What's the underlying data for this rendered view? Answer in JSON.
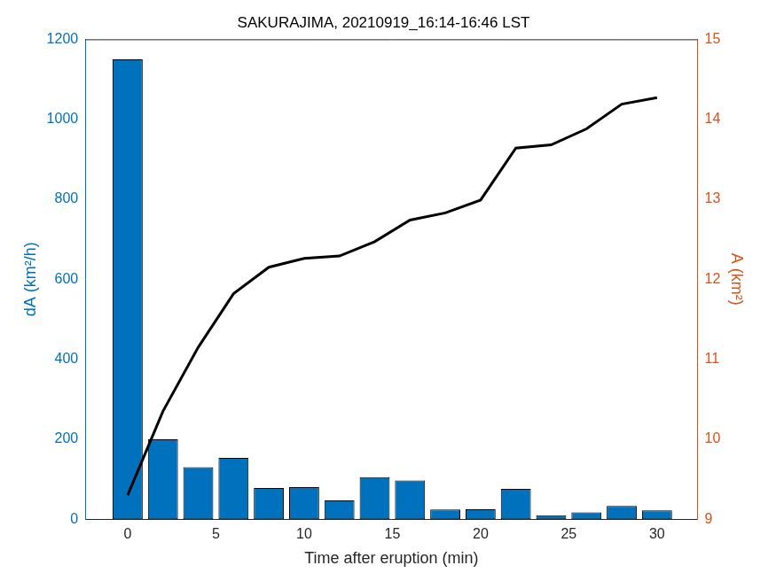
{
  "chart_data": {
    "type": "bar",
    "title": "SAKURAJIMA, 20210919_16:14-16:46 LST",
    "x_label": "Time after eruption (min)",
    "y_label": "dA (km²/h)",
    "y2_label": "A (km²)",
    "x": [
      0,
      2,
      4,
      6,
      8,
      10,
      12,
      14,
      16,
      18,
      20,
      22,
      24,
      26,
      28,
      30
    ],
    "series": [
      {
        "type": "bar",
        "color": "#0072bd",
        "axis": "y",
        "values": [
          1150,
          200,
          130,
          153,
          78,
          80,
          47,
          105,
          97,
          24,
          25,
          76,
          10,
          17,
          33,
          22
        ]
      },
      {
        "type": "line",
        "color": "#000000",
        "axis": "y2",
        "values": [
          9.3,
          10.35,
          11.15,
          11.82,
          12.15,
          12.26,
          12.29,
          12.47,
          12.74,
          12.83,
          12.99,
          13.64,
          13.68,
          13.88,
          14.19,
          14.27
        ]
      }
    ],
    "xlim": [
      -2.4,
      32.3
    ],
    "xticks": [
      0,
      5,
      10,
      15,
      20,
      25,
      30
    ],
    "ylim": [
      0,
      1200
    ],
    "yticks": [
      0,
      200,
      400,
      600,
      800,
      1000,
      1200
    ],
    "y2lim": [
      9,
      15
    ],
    "y2ticks": [
      9,
      10,
      11,
      12,
      13,
      14,
      15
    ],
    "grid": false
  }
}
